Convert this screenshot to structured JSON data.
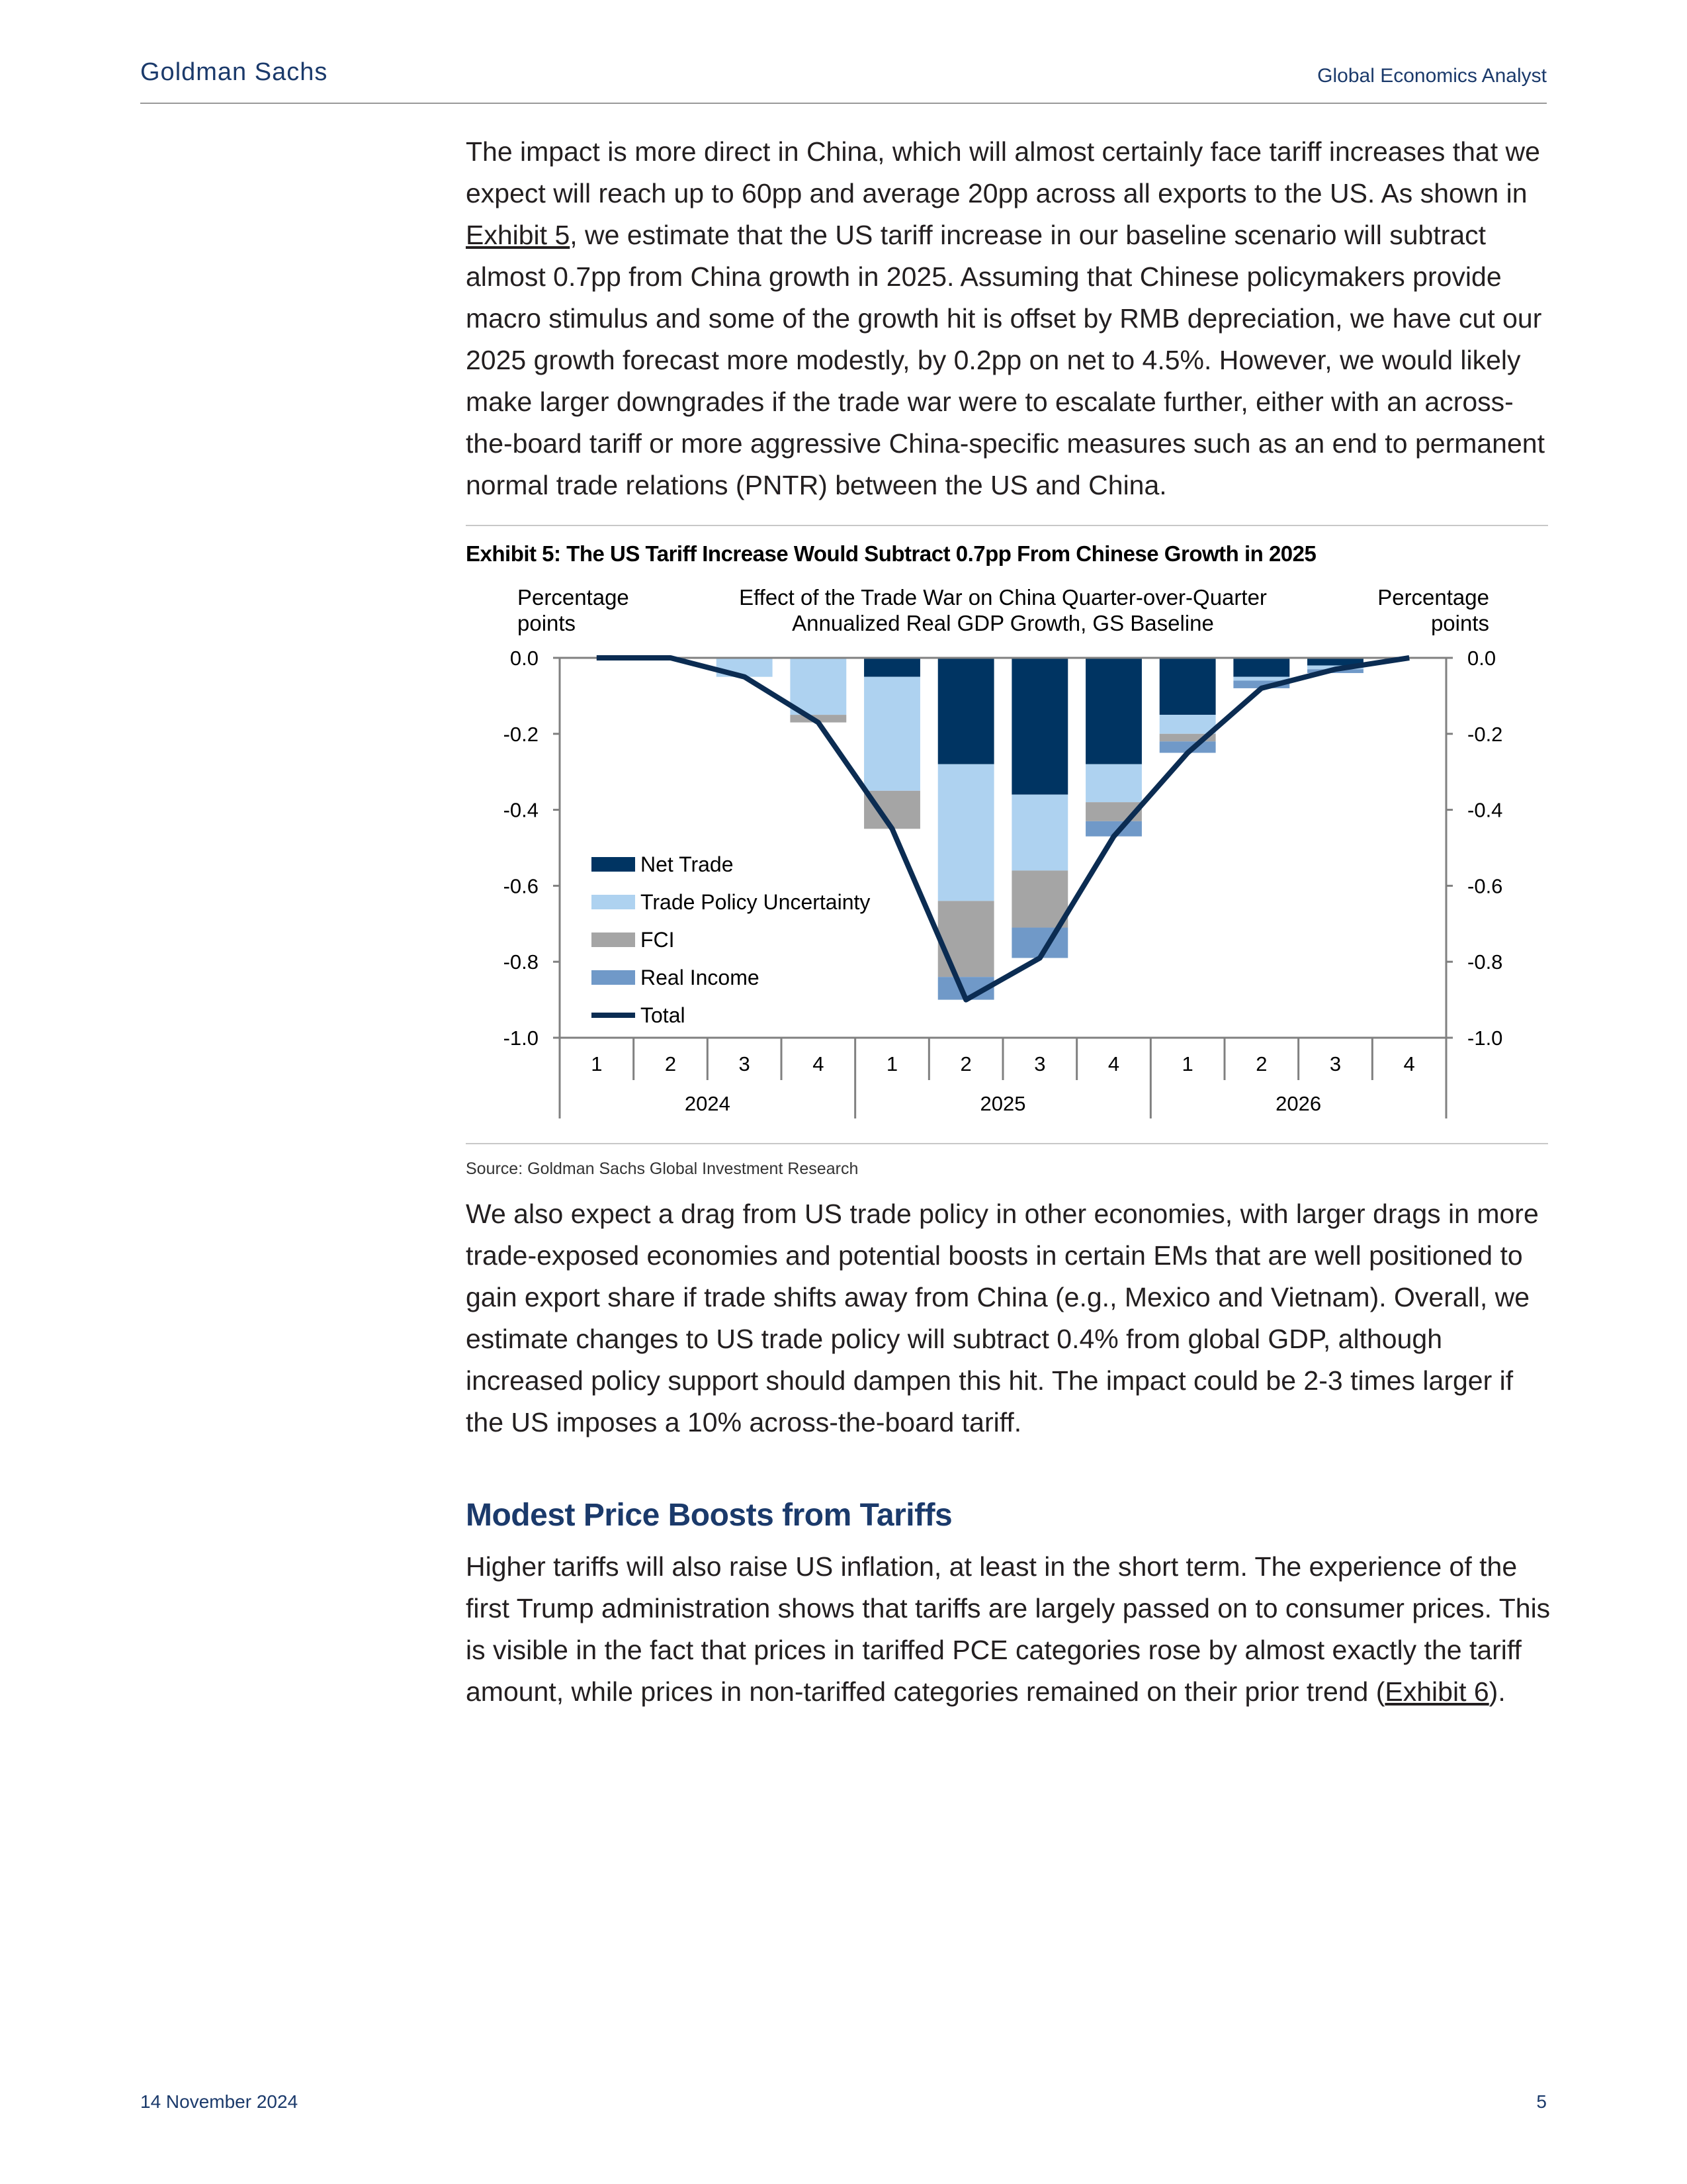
{
  "header": {
    "brand": "Goldman Sachs",
    "publication": "Global Economics Analyst"
  },
  "body": {
    "p1_parts": [
      "The impact is more direct in China, which will almost certainly face tariff increases that we expect will reach up to 60pp and average 20pp across all exports to the US.  As shown in ",
      "Exhibit 5",
      ", we estimate that the US tariff increase in our baseline scenario will subtract almost 0.7pp from China growth in 2025.  Assuming that Chinese policymakers provide macro stimulus and some of the growth hit is offset by RMB depreciation, we have cut our 2025 growth forecast more modestly, by 0.2pp on net to 4.5%.  However, we would likely make larger downgrades if the trade war were to escalate further, either with an across-the-board tariff or more aggressive China-specific measures such as an end to permanent normal trade relations (PNTR) between the US and China."
    ],
    "p2": "We also expect a drag from US trade policy in other economies, with larger drags in more trade-exposed economies and potential boosts in certain EMs that are well positioned to gain export share if trade shifts away from China (e.g., Mexico and Vietnam).  Overall, we estimate changes to US trade policy will subtract 0.4% from global GDP, although increased policy support should dampen this hit.  The impact could be 2-3 times larger if the US imposes a 10% across-the-board tariff.",
    "section_heading": "Modest Price Boosts from Tariffs",
    "p3_parts": [
      "Higher tariffs will also raise US inflation, at least in the short term. The experience of the first Trump administration shows that tariffs are largely passed on to consumer prices.  This is visible in the fact that prices in tariffed PCE categories rose by almost exactly the tariff amount, while prices in non-tariffed categories remained on their prior trend (",
      "Exhibit 6",
      ")."
    ]
  },
  "exhibit": {
    "title": "Exhibit 5: The US Tariff Increase Would Subtract 0.7pp From Chinese Growth in 2025",
    "source": "Source: Goldman Sachs Global Investment Research"
  },
  "chart_data": {
    "type": "bar",
    "stacked": true,
    "title_lines": [
      "Effect of the Trade War on China Quarter-over-Quarter",
      "Annualized Real GDP Growth, GS Baseline"
    ],
    "left_axis_label_lines": [
      "Percentage",
      "points"
    ],
    "right_axis_label_lines": [
      "Percentage",
      "points"
    ],
    "ylim": [
      -1.0,
      0.0
    ],
    "yticks": [
      0.0,
      -0.2,
      -0.4,
      -0.6,
      -0.8,
      -1.0
    ],
    "ytick_labels": [
      "0.0",
      "-0.2",
      "-0.4",
      "-0.6",
      "-0.8",
      "-1.0"
    ],
    "categories": [
      "1",
      "2",
      "3",
      "4",
      "1",
      "2",
      "3",
      "4",
      "1",
      "2",
      "3",
      "4"
    ],
    "year_groups": [
      "2024",
      "2025",
      "2026"
    ],
    "legend_position": "center-left",
    "series": [
      {
        "name": "Net Trade",
        "color": "#003462",
        "values": [
          0,
          0,
          0,
          0,
          -0.05,
          -0.28,
          -0.36,
          -0.28,
          -0.15,
          -0.05,
          -0.02,
          0
        ]
      },
      {
        "name": "Trade Policy Uncertainty",
        "color": "#aed2f0",
        "values": [
          0,
          0,
          -0.05,
          -0.15,
          -0.3,
          -0.36,
          -0.2,
          -0.1,
          -0.05,
          -0.01,
          -0.01,
          0
        ]
      },
      {
        "name": "FCI",
        "color": "#a5a5a5",
        "values": [
          0,
          0,
          0,
          -0.02,
          -0.1,
          -0.2,
          -0.15,
          -0.05,
          -0.02,
          0,
          0,
          0
        ]
      },
      {
        "name": "Real Income",
        "color": "#7099c8",
        "values": [
          0,
          0,
          0,
          0,
          0,
          -0.06,
          -0.08,
          -0.04,
          -0.03,
          -0.02,
          -0.01,
          0
        ]
      }
    ],
    "total": {
      "name": "Total",
      "color": "#0b2c52",
      "values": [
        0,
        0,
        -0.05,
        -0.17,
        -0.45,
        -0.9,
        -0.79,
        -0.47,
        -0.25,
        -0.08,
        -0.03,
        0
      ]
    }
  },
  "footer": {
    "date": "14 November 2024",
    "page": "5"
  }
}
